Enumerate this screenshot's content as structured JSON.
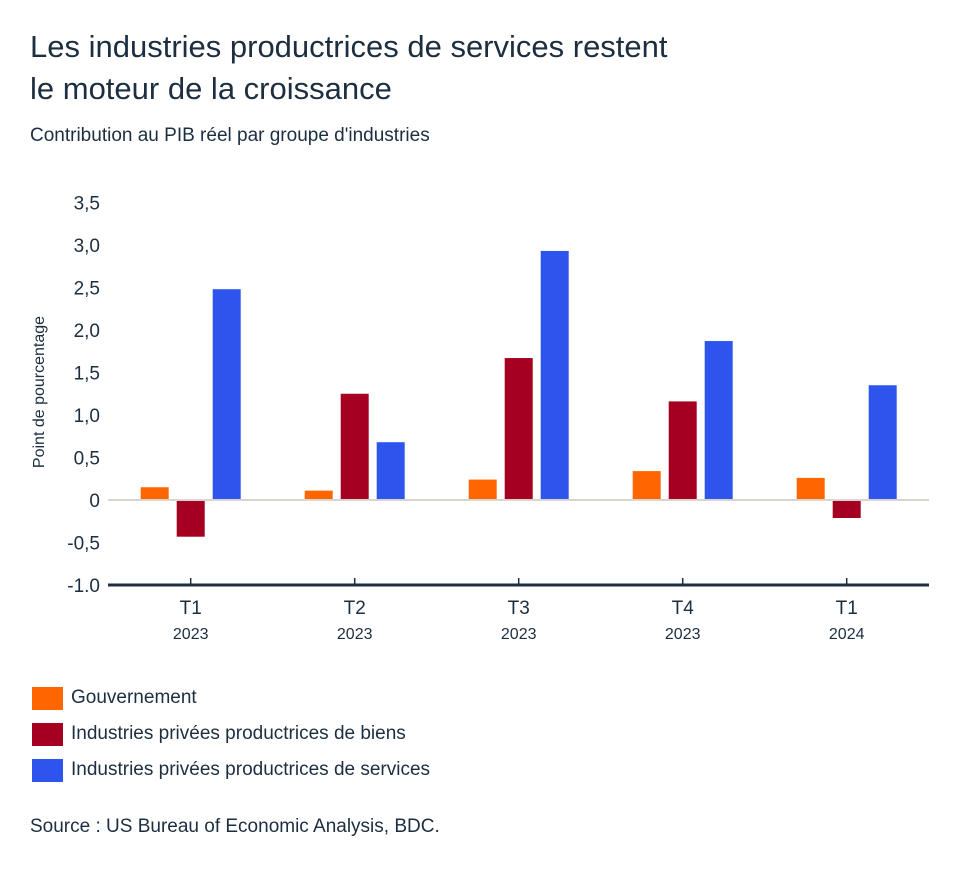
{
  "chart_data": {
    "type": "bar",
    "title": "Les industries productrices de services restent le moteur de la croissance",
    "title_lines": [
      "Les industries productrices de services restent",
      "le moteur de la croissance"
    ],
    "subtitle": "Contribution au PIB réel par groupe d'industries",
    "xlabel": "",
    "ylabel": "Point de pourcentage",
    "ylim": [
      -1.0,
      3.5
    ],
    "yticks": [
      3.5,
      3.0,
      2.5,
      2.0,
      1.5,
      1.0,
      0.5,
      0,
      -0.5,
      -1.0
    ],
    "ytick_labels": [
      "3,5",
      "3,0",
      "2,5",
      "2,0",
      "1,5",
      "1,0",
      "0,5",
      "0",
      "-0,5",
      "-1.0"
    ],
    "grid": false,
    "legend_position": "bottom-left",
    "categories": [
      {
        "quarter": "T1",
        "year": "2023"
      },
      {
        "quarter": "T2",
        "year": "2023"
      },
      {
        "quarter": "T3",
        "year": "2023"
      },
      {
        "quarter": "T4",
        "year": "2023"
      },
      {
        "quarter": "T1",
        "year": "2024"
      }
    ],
    "series": [
      {
        "name": "Gouvernement",
        "color": "#ff6600",
        "values": [
          0.15,
          0.11,
          0.24,
          0.34,
          0.26
        ]
      },
      {
        "name": "Industries privées productrices de biens",
        "color": "#a50021",
        "values": [
          -0.42,
          1.25,
          1.67,
          1.16,
          -0.2
        ]
      },
      {
        "name": "Industries privées productrices de services",
        "color": "#2d55ee",
        "values": [
          2.48,
          0.68,
          2.93,
          1.87,
          1.35
        ]
      }
    ],
    "source": "Source : US Bureau of Economic Analysis, BDC."
  }
}
